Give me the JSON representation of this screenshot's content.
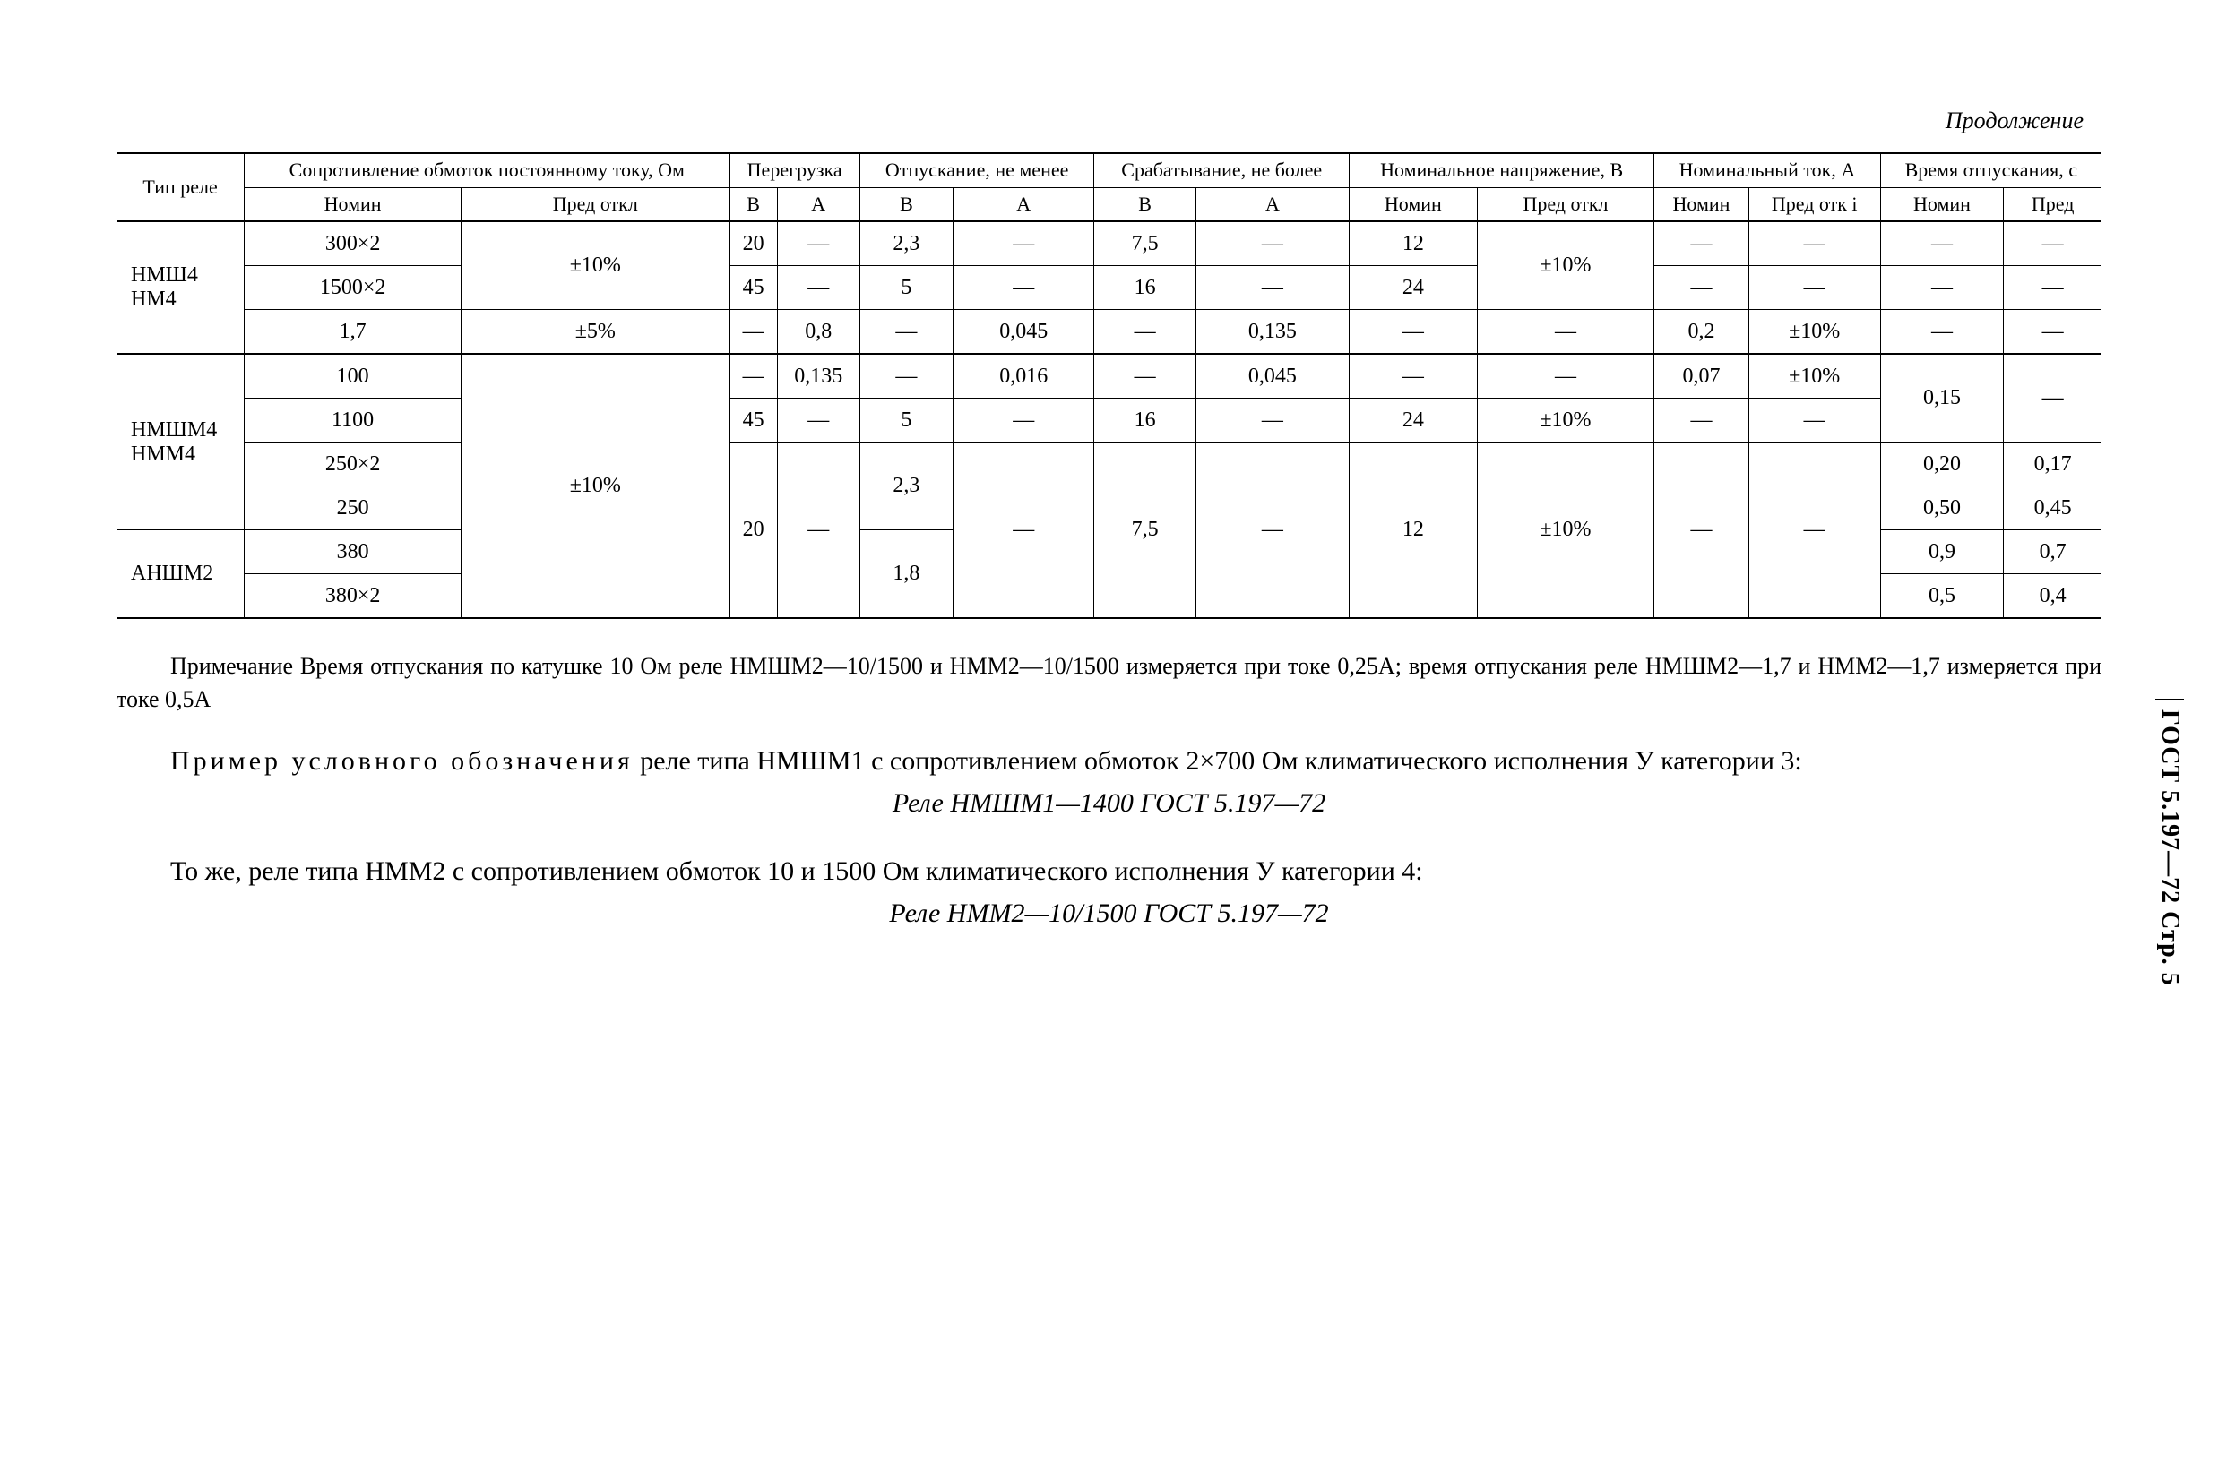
{
  "continuation": "Продолжение",
  "side_label": "ГОСТ 5.197—72 Стр. 5",
  "headers": {
    "relay_type": "Тип реле",
    "resistance": "Сопротивление обмоток постоянному току, Ом",
    "overload": "Перегрузка",
    "release": "Отпускание, не менее",
    "pickup": "Срабатывание, не более",
    "nom_voltage": "Номинальное напряжение, В",
    "nom_current": "Номинальный ток, А",
    "release_time": "Время отпускания, с",
    "nomin": "Номин",
    "pred": "Пред",
    "pred_otkl": "Пред откл",
    "pred_otki": "Пред отк і",
    "V": "В",
    "A": "А"
  },
  "relay_groups": {
    "g1": "НМШ4\nНМ4",
    "g2": "НМШМ4\nНММ4",
    "g3": "АНШМ2"
  },
  "rows": {
    "r1": {
      "res": "300×2",
      "dev": "±10%",
      "ovV": "20",
      "ovA": "—",
      "relV": "2,3",
      "relA": "—",
      "pickV": "7,5",
      "pickA": "—",
      "nvN": "12",
      "nvD": "±10%",
      "ncN": "—",
      "ncD": "—",
      "tN": "—",
      "tP": "—"
    },
    "r2": {
      "res": "1500×2",
      "dev": "",
      "ovV": "45",
      "ovA": "—",
      "relV": "5",
      "relA": "—",
      "pickV": "16",
      "pickA": "—",
      "nvN": "24",
      "nvD": "",
      "ncN": "—",
      "ncD": "—",
      "tN": "—",
      "tP": "—"
    },
    "r3": {
      "res": "1,7",
      "dev": "±5%",
      "ovV": "—",
      "ovA": "0,8",
      "relV": "—",
      "relA": "0,045",
      "pickV": "—",
      "pickA": "0,135",
      "nvN": "—",
      "nvD": "—",
      "ncN": "0,2",
      "ncD": "±10%",
      "tN": "—",
      "tP": "—"
    },
    "r4": {
      "res": "100",
      "dev": "±10%",
      "ovV": "—",
      "ovA": "0,135",
      "relV": "—",
      "relA": "0,016",
      "pickV": "—",
      "pickA": "0,045",
      "nvN": "—",
      "nvD": "—",
      "ncN": "0,07",
      "ncD": "±10%",
      "tN": "0,15",
      "tP": "—"
    },
    "r5": {
      "res": "1100",
      "dev": "",
      "ovV": "45",
      "ovA": "—",
      "relV": "5",
      "relA": "—",
      "pickV": "16",
      "pickA": "—",
      "nvN": "24",
      "nvD": "±10%",
      "ncN": "—",
      "ncD": "—",
      "tN": "",
      "tP": ""
    },
    "r6": {
      "res": "250×2",
      "dev": "",
      "ovV": "20",
      "ovA": "—",
      "relV": "2,3",
      "relA": "—",
      "pickV": "7,5",
      "pickA": "—",
      "nvN": "12",
      "nvD": "±10%",
      "ncN": "—",
      "ncD": "—",
      "tN": "0,20",
      "tP": "0,17"
    },
    "r7": {
      "res": "250",
      "dev": "",
      "ovV": "",
      "ovA": "",
      "relV": "",
      "relA": "",
      "pickV": "",
      "pickA": "",
      "nvN": "",
      "nvD": "",
      "ncN": "",
      "ncD": "",
      "tN": "0,50",
      "tP": "0,45"
    },
    "r8": {
      "res": "380",
      "dev": "",
      "ovV": "",
      "ovA": "",
      "relV": "1,8",
      "relA": "",
      "pickV": "",
      "pickA": "",
      "nvN": "",
      "nvD": "",
      "ncN": "",
      "ncD": "",
      "tN": "0,9",
      "tP": "0,7"
    },
    "r9": {
      "res": "380×2",
      "dev": "",
      "ovV": "",
      "ovA": "",
      "relV": "",
      "relA": "",
      "pickV": "",
      "pickA": "",
      "nvN": "",
      "nvD": "",
      "ncN": "",
      "ncD": "",
      "tN": "0,5",
      "tP": "0,4"
    }
  },
  "note": "Примечание Время отпускания по катушке 10 Ом реле НМШМ2—10/1500 и НММ2—10/1500 измеряется при токе 0,25А; время отпускания реле НМШМ2—1,7 и НММ2—1,7 измеряется при токе 0,5А",
  "para1_a": "Пример условного обозначения",
  "para1_b": " реле типа НМШМ1 с сопротивлением обмоток 2×700 Ом климатического исполнения У категории 3:",
  "example1": "Реле НМШМ1—1400 ГОСТ 5.197—72",
  "para2": "То же, реле типа НММ2 с сопротивлением обмоток 10 и 1500 Ом климатического исполнения У категории 4:",
  "example2": "Реле НММ2—10/1500 ГОСТ 5.197—72"
}
